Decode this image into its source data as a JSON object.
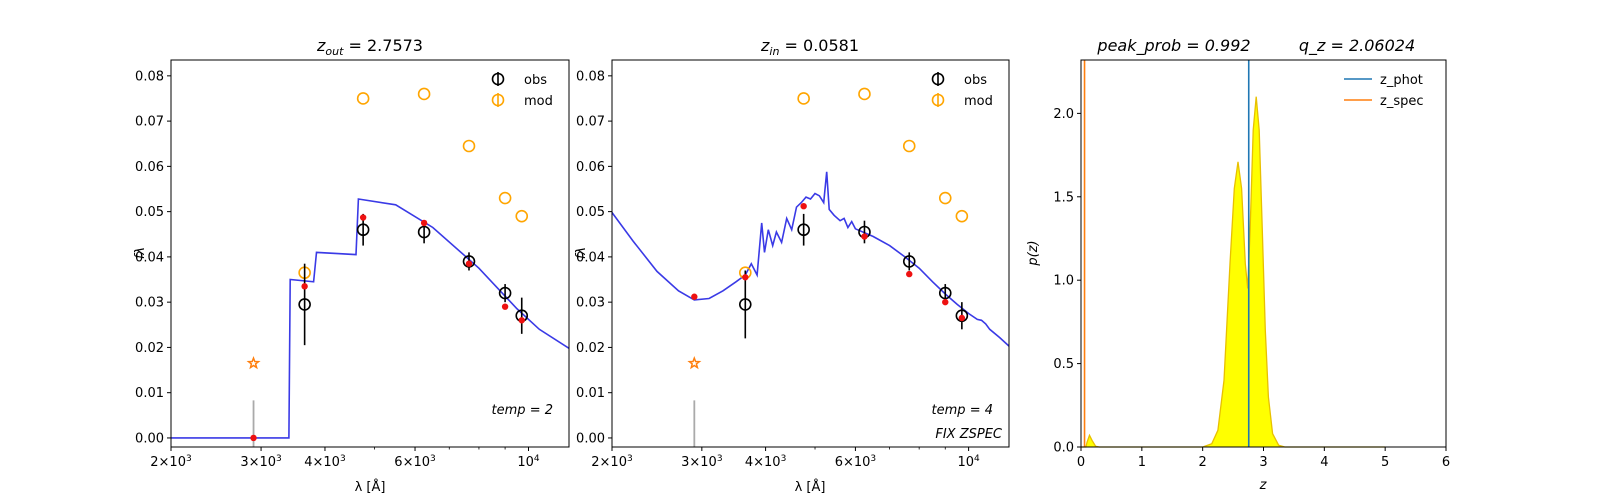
{
  "chart_data": [
    {
      "type": "scatter",
      "title": {
        "symbol": "z",
        "sub": "out",
        "value": " = 2.7573"
      },
      "xlabel": "λ [Å]",
      "ylabel": "fλ",
      "xscale": "log",
      "xlim": [
        2000,
        12000
      ],
      "ylim": [
        -0.002,
        0.0835
      ],
      "xticks": [
        {
          "v": 2000,
          "m": "2",
          "e": "3"
        },
        {
          "v": 3000,
          "m": "3",
          "e": "3"
        },
        {
          "v": 4000,
          "m": "4",
          "e": "3"
        },
        {
          "v": 6000,
          "m": "6",
          "e": "3"
        },
        {
          "v": 10000,
          "m": "",
          "e": "4"
        }
      ],
      "yticks": [
        "0.00",
        "0.01",
        "0.02",
        "0.03",
        "0.04",
        "0.05",
        "0.06",
        "0.07",
        "0.08"
      ],
      "legend": {
        "position": "top-right",
        "entries": [
          "obs",
          "mod"
        ]
      },
      "annotations": [
        "temp = 2"
      ],
      "obs": [
        {
          "x": 3650,
          "y": 0.0295,
          "err": 0.009
        },
        {
          "x": 4750,
          "y": 0.046,
          "err": 0.0035
        },
        {
          "x": 6250,
          "y": 0.0455,
          "err": 0.0025
        },
        {
          "x": 7650,
          "y": 0.039,
          "err": 0.002
        },
        {
          "x": 9000,
          "y": 0.032,
          "err": 0.002
        },
        {
          "x": 9700,
          "y": 0.027,
          "err": 0.004
        }
      ],
      "mod": [
        {
          "x": 3650,
          "y": 0.0365
        },
        {
          "x": 4750,
          "y": 0.075
        },
        {
          "x": 6250,
          "y": 0.076
        },
        {
          "x": 7650,
          "y": 0.0645
        },
        {
          "x": 9000,
          "y": 0.053
        },
        {
          "x": 9700,
          "y": 0.049
        }
      ],
      "model_pts": [
        {
          "x": 2900,
          "y": 0.0
        },
        {
          "x": 3650,
          "y": 0.0335
        },
        {
          "x": 4750,
          "y": 0.0487
        },
        {
          "x": 6250,
          "y": 0.0475
        },
        {
          "x": 7650,
          "y": 0.0385
        },
        {
          "x": 9000,
          "y": 0.029
        },
        {
          "x": 9700,
          "y": 0.026
        }
      ],
      "star": {
        "x": 2900,
        "y": 0.0165
      },
      "uplim": {
        "x": 2900,
        "y0": -0.002,
        "y1": 0.0083
      },
      "sed": [
        [
          2000,
          0.0
        ],
        [
          3400,
          0.0
        ],
        [
          3420,
          0.035
        ],
        [
          3800,
          0.0345
        ],
        [
          3850,
          0.041
        ],
        [
          4600,
          0.0405
        ],
        [
          4650,
          0.0528
        ],
        [
          5500,
          0.0515
        ],
        [
          6500,
          0.0465
        ],
        [
          8000,
          0.0375
        ],
        [
          9500,
          0.0285
        ],
        [
          10500,
          0.024
        ],
        [
          12000,
          0.0198
        ]
      ]
    },
    {
      "type": "scatter",
      "title": {
        "symbol": "z",
        "sub": "in",
        "value": " = 0.0581"
      },
      "xlabel": "λ [Å]",
      "ylabel": "fλ",
      "xscale": "log",
      "xlim": [
        2000,
        12000
      ],
      "ylim": [
        -0.002,
        0.0835
      ],
      "xticks": [
        {
          "v": 2000,
          "m": "2",
          "e": "3"
        },
        {
          "v": 3000,
          "m": "3",
          "e": "3"
        },
        {
          "v": 4000,
          "m": "4",
          "e": "3"
        },
        {
          "v": 6000,
          "m": "6",
          "e": "3"
        },
        {
          "v": 10000,
          "m": "",
          "e": "4"
        }
      ],
      "yticks": [
        "0.00",
        "0.01",
        "0.02",
        "0.03",
        "0.04",
        "0.05",
        "0.06",
        "0.07",
        "0.08"
      ],
      "legend": {
        "position": "top-right",
        "entries": [
          "obs",
          "mod"
        ]
      },
      "annotations": [
        "temp = 4",
        "FIX ZSPEC"
      ],
      "obs": [
        {
          "x": 3650,
          "y": 0.0295,
          "err": 0.0075
        },
        {
          "x": 4750,
          "y": 0.046,
          "err": 0.0035
        },
        {
          "x": 6250,
          "y": 0.0455,
          "err": 0.0025
        },
        {
          "x": 7650,
          "y": 0.039,
          "err": 0.002
        },
        {
          "x": 9000,
          "y": 0.032,
          "err": 0.002
        },
        {
          "x": 9700,
          "y": 0.027,
          "err": 0.003
        }
      ],
      "mod": [
        {
          "x": 3650,
          "y": 0.0365
        },
        {
          "x": 4750,
          "y": 0.075
        },
        {
          "x": 6250,
          "y": 0.076
        },
        {
          "x": 7650,
          "y": 0.0645
        },
        {
          "x": 9000,
          "y": 0.053
        },
        {
          "x": 9700,
          "y": 0.049
        }
      ],
      "model_pts": [
        {
          "x": 2900,
          "y": 0.0312
        },
        {
          "x": 3650,
          "y": 0.0355
        },
        {
          "x": 4750,
          "y": 0.0512
        },
        {
          "x": 6250,
          "y": 0.0445
        },
        {
          "x": 7650,
          "y": 0.0362
        },
        {
          "x": 9000,
          "y": 0.03
        },
        {
          "x": 9700,
          "y": 0.0265
        }
      ],
      "star": {
        "x": 2900,
        "y": 0.0165
      },
      "uplim": {
        "x": 2900,
        "y0": -0.002,
        "y1": 0.0083
      },
      "sed": [
        [
          2000,
          0.0498
        ],
        [
          2200,
          0.0435
        ],
        [
          2450,
          0.0368
        ],
        [
          2700,
          0.0325
        ],
        [
          2900,
          0.0305
        ],
        [
          3100,
          0.0308
        ],
        [
          3300,
          0.0325
        ],
        [
          3500,
          0.0345
        ],
        [
          3650,
          0.036
        ],
        [
          3750,
          0.0385
        ],
        [
          3850,
          0.036
        ],
        [
          3930,
          0.0475
        ],
        [
          3980,
          0.041
        ],
        [
          4050,
          0.046
        ],
        [
          4130,
          0.0425
        ],
        [
          4200,
          0.0455
        ],
        [
          4300,
          0.0432
        ],
        [
          4400,
          0.0485
        ],
        [
          4500,
          0.046
        ],
        [
          4600,
          0.051
        ],
        [
          4700,
          0.052
        ],
        [
          4800,
          0.0532
        ],
        [
          4900,
          0.0528
        ],
        [
          5000,
          0.054
        ],
        [
          5100,
          0.0535
        ],
        [
          5200,
          0.052
        ],
        [
          5270,
          0.0588
        ],
        [
          5330,
          0.0505
        ],
        [
          5450,
          0.0492
        ],
        [
          5600,
          0.048
        ],
        [
          5700,
          0.0485
        ],
        [
          5800,
          0.0465
        ],
        [
          5900,
          0.0478
        ],
        [
          6000,
          0.0462
        ],
        [
          6500,
          0.0445
        ],
        [
          7000,
          0.0425
        ],
        [
          7500,
          0.04
        ],
        [
          8000,
          0.0375
        ],
        [
          8500,
          0.0345
        ],
        [
          9000,
          0.0318
        ],
        [
          9500,
          0.0295
        ],
        [
          10000,
          0.0275
        ],
        [
          10400,
          0.0262
        ],
        [
          10600,
          0.026
        ],
        [
          10800,
          0.0252
        ],
        [
          11000,
          0.024
        ],
        [
          11500,
          0.0222
        ],
        [
          12000,
          0.0203
        ]
      ]
    },
    {
      "type": "area",
      "title": {
        "left": "peak_prob = 0.992",
        "right": "q_z = 2.06024"
      },
      "xlabel": "z",
      "ylabel": "p(z)",
      "xlim": [
        0,
        6
      ],
      "ylim": [
        0,
        2.32
      ],
      "xticks": [
        "0",
        "1",
        "2",
        "3",
        "4",
        "5",
        "6"
      ],
      "yticks": [
        "0.0",
        "0.5",
        "1.0",
        "1.5",
        "2.0"
      ],
      "legend": {
        "position": "top-right",
        "entries": [
          "z_phot",
          "z_spec"
        ]
      },
      "z_phot": 2.7573,
      "z_spec": 0.0581,
      "colors": {
        "z_phot": "#1f77b4",
        "z_spec": "#ff7f0e",
        "fill": "#ffff00",
        "edge": "#e8c000",
        "sed": "#3a3ae6"
      },
      "pz": [
        [
          0.0,
          0.0
        ],
        [
          0.08,
          0.0
        ],
        [
          0.1,
          0.03
        ],
        [
          0.14,
          0.07
        ],
        [
          0.18,
          0.04
        ],
        [
          0.24,
          0.005
        ],
        [
          0.3,
          0.0
        ],
        [
          2.0,
          0.0
        ],
        [
          2.15,
          0.02
        ],
        [
          2.25,
          0.1
        ],
        [
          2.35,
          0.4
        ],
        [
          2.45,
          1.1
        ],
        [
          2.52,
          1.55
        ],
        [
          2.58,
          1.71
        ],
        [
          2.64,
          1.55
        ],
        [
          2.7,
          1.1
        ],
        [
          2.74,
          0.95
        ],
        [
          2.78,
          1.3
        ],
        [
          2.83,
          1.9
        ],
        [
          2.88,
          2.1
        ],
        [
          2.93,
          1.9
        ],
        [
          2.98,
          1.3
        ],
        [
          3.03,
          0.7
        ],
        [
          3.08,
          0.3
        ],
        [
          3.15,
          0.08
        ],
        [
          3.25,
          0.01
        ],
        [
          3.35,
          0.0
        ],
        [
          5.0,
          0.0
        ]
      ]
    }
  ]
}
